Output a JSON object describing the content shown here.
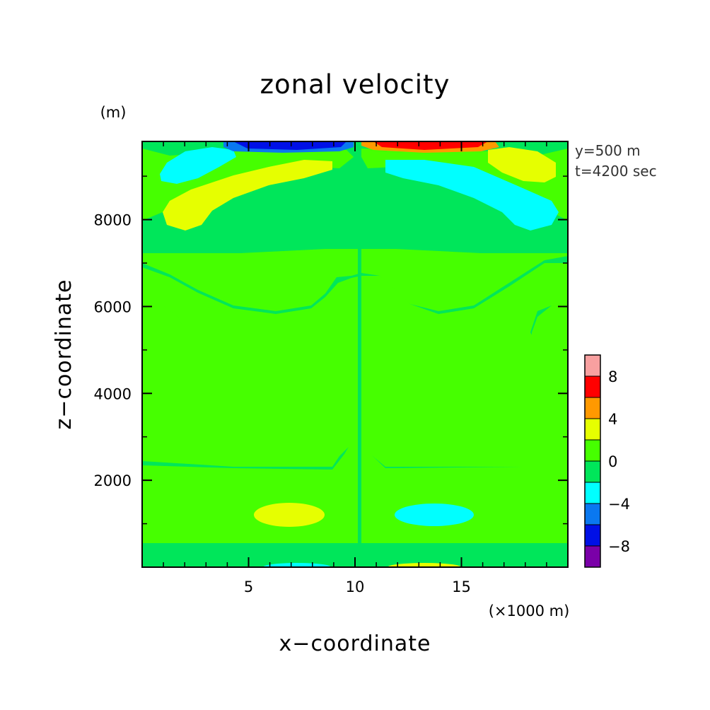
{
  "chart_data": {
    "type": "heatmap",
    "title": "zonal velocity",
    "xlabel": "x−coordinate",
    "ylabel": "z−coordinate",
    "x_unit": "(×1000 m)",
    "y_unit": "(m)",
    "xlim": [
      0,
      20
    ],
    "ylim": [
      0,
      9800
    ],
    "x_ticks": [
      5,
      10,
      15
    ],
    "x_tick_labels": [
      "5",
      "10",
      "15"
    ],
    "y_ticks": [
      2000,
      4000,
      6000,
      8000
    ],
    "y_tick_labels": [
      "2000",
      "4000",
      "6000",
      "8000"
    ],
    "annotations": [
      "y=500 m",
      "t=4200 sec"
    ],
    "colorbar": {
      "levels": [
        -10,
        -8,
        -6,
        -4,
        -2,
        0,
        2,
        4,
        6,
        8,
        10
      ],
      "colors": [
        "#7a00a8",
        "#0010e6",
        "#0a78f0",
        "#00ffff",
        "#00e65a",
        "#46ff00",
        "#e6ff00",
        "#ff9900",
        "#ff0000",
        "#f8a0a0"
      ],
      "tick_values": [
        -8,
        -4,
        0,
        4,
        8
      ],
      "tick_labels": [
        "−8",
        "−4",
        "0",
        "4",
        "8"
      ]
    },
    "regions": [
      {
        "x": [
          0,
          20
        ],
        "z": [
          0,
          9800
        ],
        "value": -1,
        "note": "background field (weak negative)"
      },
      {
        "x": [
          0,
          20
        ],
        "z": [
          650,
          2350
        ],
        "value": 1,
        "note": "lower positive band"
      },
      {
        "x": [
          0,
          20
        ],
        "z": [
          5300,
          7300
        ],
        "value": 1,
        "note": "upper positive band with trough near x=10"
      },
      {
        "x": [
          5.3,
          8.7
        ],
        "z": [
          1050,
          1600
        ],
        "value": 3,
        "note": "left lower positive lobe"
      },
      {
        "x": [
          11.8,
          15.6
        ],
        "z": [
          1050,
          1600
        ],
        "value": -3,
        "note": "right lower negative lobe"
      },
      {
        "x": [
          1,
          9
        ],
        "z": [
          8000,
          9450
        ],
        "value": 3,
        "note": "left upper positive lobe"
      },
      {
        "x": [
          11.5,
          19
        ],
        "z": [
          8000,
          9450
        ],
        "value": -3,
        "note": "right upper negative lobe"
      },
      {
        "x": [
          1,
          6
        ],
        "z": [
          9000,
          9700
        ],
        "value": -3,
        "note": "left near-top negative lobe"
      },
      {
        "x": [
          16,
          19
        ],
        "z": [
          9000,
          9700
        ],
        "value": 3,
        "note": "right near-top positive lobe"
      },
      {
        "x": [
          3.5,
          9.8
        ],
        "z": [
          9650,
          9800
        ],
        "value": -7,
        "note": "left top jet"
      },
      {
        "x": [
          10.5,
          16.5
        ],
        "z": [
          9650,
          9800
        ],
        "value": 7,
        "note": "right top jet"
      }
    ]
  }
}
